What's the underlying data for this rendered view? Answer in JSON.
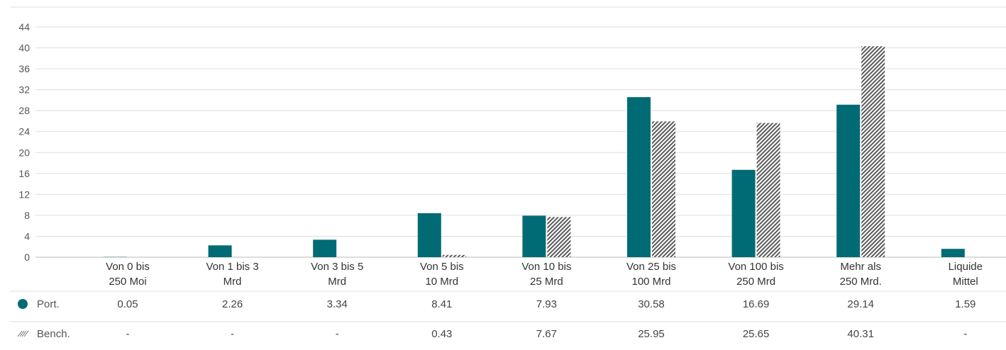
{
  "chart_data": {
    "type": "bar",
    "title": "",
    "xlabel": "",
    "ylabel": "",
    "ylim": [
      0,
      44
    ],
    "yticks": [
      0,
      4,
      8,
      12,
      16,
      20,
      24,
      28,
      32,
      36,
      40,
      44
    ],
    "grid": true,
    "categories": [
      [
        "Von 0 bis",
        "250 Moi"
      ],
      [
        "Von 1 bis 3",
        "Mrd"
      ],
      [
        "Von 3 bis 5",
        "Mrd"
      ],
      [
        "Von 5 bis",
        "10 Mrd"
      ],
      [
        "Von 10 bis",
        "25 Mrd"
      ],
      [
        "Von 25 bis",
        "100 Mrd"
      ],
      [
        "Von 100 bis",
        "250 Mrd"
      ],
      [
        "Mehr als",
        "250 Mrd."
      ],
      [
        "Liquide",
        "Mittel"
      ]
    ],
    "series": [
      {
        "name": "Port.",
        "color": "#006b74",
        "pattern": "solid",
        "marker_icon": "filled-circle-icon",
        "values": [
          0.05,
          2.26,
          3.34,
          8.41,
          7.93,
          30.58,
          16.69,
          29.14,
          1.59
        ],
        "labels": [
          "0.05",
          "2.26",
          "3.34",
          "8.41",
          "7.93",
          "30.58",
          "16.69",
          "29.14",
          "1.59"
        ]
      },
      {
        "name": "Bench.",
        "color": "#555555",
        "pattern": "diagonal-hatch",
        "marker_icon": "hatch-swatch-icon",
        "values": [
          null,
          null,
          null,
          0.43,
          7.67,
          25.95,
          25.65,
          40.31,
          null
        ],
        "labels": [
          "-",
          "-",
          "-",
          "0.43",
          "7.67",
          "25.95",
          "25.65",
          "40.31",
          "-"
        ]
      }
    ]
  }
}
